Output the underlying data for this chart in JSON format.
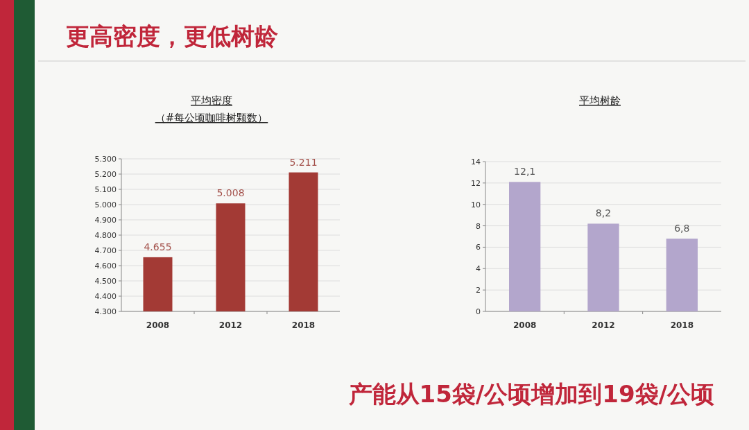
{
  "chart_data": [
    {
      "type": "bar",
      "title": "平均密度",
      "subtitle": "（#每公顷咖啡树颗数）",
      "categories": [
        "2008",
        "2012",
        "2018"
      ],
      "values": [
        4655,
        5008,
        5211
      ],
      "value_labels": [
        "4.655",
        "5.008",
        "5.211"
      ],
      "color": "#a33a35",
      "ylim": [
        4300,
        5300
      ],
      "yticks": [
        {
          "value": 4300,
          "label": "4.300"
        },
        {
          "value": 4400,
          "label": "4.400"
        },
        {
          "value": 4500,
          "label": "4.500"
        },
        {
          "value": 4600,
          "label": "4.600"
        },
        {
          "value": 4700,
          "label": "4.700"
        },
        {
          "value": 4800,
          "label": "4.800"
        },
        {
          "value": 4900,
          "label": "4.900"
        },
        {
          "value": 5000,
          "label": "5.000"
        },
        {
          "value": 5100,
          "label": "5.100"
        },
        {
          "value": 5200,
          "label": "5.200"
        },
        {
          "value": 5300,
          "label": "5.300"
        }
      ],
      "grid": "y",
      "annotations": [
        "更高密度，更低树龄",
        "产能从15袋/公顷增加到19袋/公顷"
      ]
    },
    {
      "type": "bar",
      "title": "平均树龄",
      "categories": [
        "2008",
        "2012",
        "2018"
      ],
      "values": [
        12.1,
        8.2,
        6.8
      ],
      "value_labels": [
        "12,1",
        "8,2",
        "6,8"
      ],
      "color": "#b3a6cc",
      "ylim": [
        0,
        14
      ],
      "yticks": [
        0,
        2,
        4,
        6,
        8,
        10,
        12,
        14
      ],
      "grid": "y"
    }
  ]
}
